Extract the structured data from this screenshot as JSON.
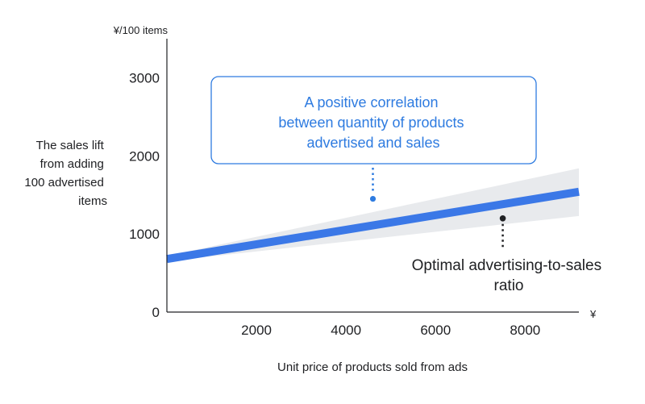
{
  "chart_data": {
    "type": "line",
    "xlabel": "Unit price of products sold from ads",
    "x_unit": "¥",
    "ylabel_lines": [
      "The sales lift",
      "from adding",
      "100 advertised",
      "items"
    ],
    "y_unit": "¥/100 items",
    "xlim": [
      0,
      9200
    ],
    "ylim": [
      0,
      3500
    ],
    "x_ticks": [
      2000,
      4000,
      6000,
      8000
    ],
    "y_ticks": [
      0,
      1000,
      2000,
      3000
    ],
    "grid": false,
    "series": [
      {
        "x": [
          0,
          9200
        ],
        "y": [
          680,
          1540
        ]
      }
    ],
    "confidence_band": {
      "x": [
        0,
        9200
      ],
      "lower": [
        650,
        1230
      ],
      "upper": [
        720,
        1840
      ]
    },
    "annotations": [
      {
        "lines": [
          "A positive correlation",
          "between quantity of products",
          "advertised and sales"
        ],
        "point": {
          "x": 4600,
          "y": 1450
        },
        "color": "#2e7be0"
      },
      {
        "lines": [
          "Optimal advertising-to-sales",
          "ratio"
        ],
        "point": {
          "x": 7500,
          "y": 1200
        },
        "color": "#202124"
      }
    ],
    "colors": {
      "line": "#3b78e7",
      "band": "#e8eaed",
      "axis": "#202124",
      "callout_border": "#2e7be0"
    }
  }
}
